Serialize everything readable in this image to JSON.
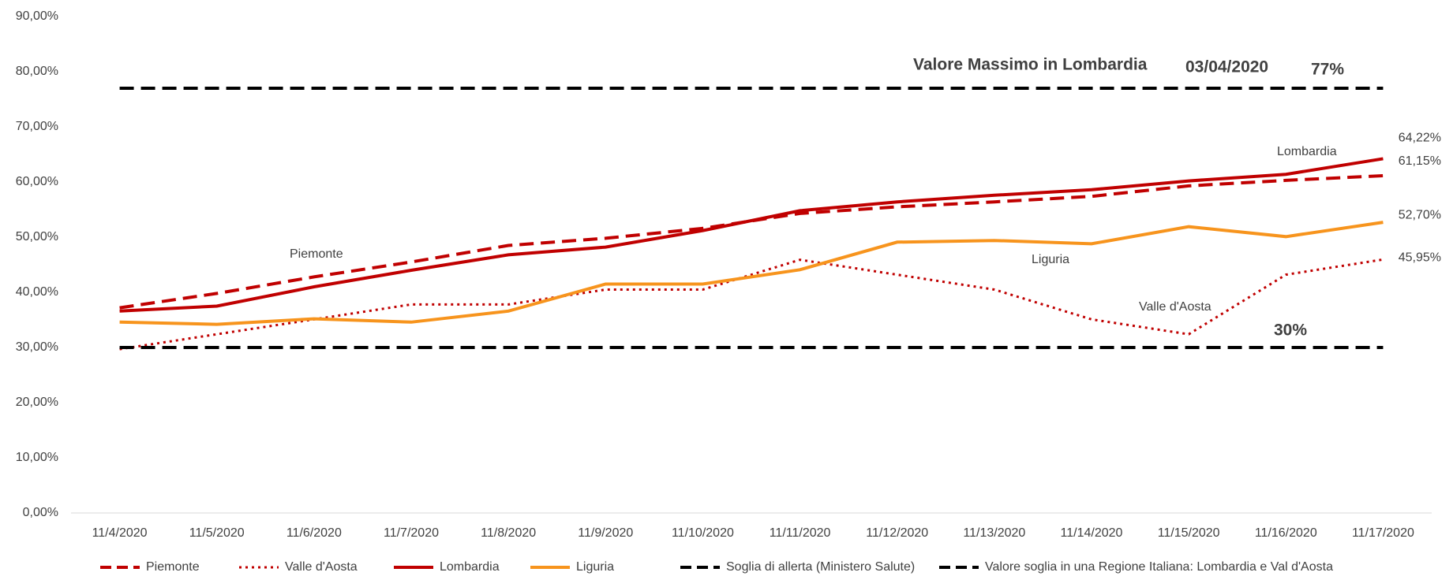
{
  "chart_data": {
    "type": "line",
    "categories": [
      "11/4/2020",
      "11/5/2020",
      "11/6/2020",
      "11/7/2020",
      "11/8/2020",
      "11/9/2020",
      "11/10/2020",
      "11/11/2020",
      "11/12/2020",
      "11/13/2020",
      "11/14/2020",
      "11/15/2020",
      "11/16/2020",
      "11/17/2020"
    ],
    "ylim": [
      0,
      90
    ],
    "yticks": [
      {
        "value": 0,
        "label": "0,00%"
      },
      {
        "value": 10,
        "label": "10,00%"
      },
      {
        "value": 20,
        "label": "20,00%"
      },
      {
        "value": 30,
        "label": "30,00%"
      },
      {
        "value": 40,
        "label": "40,00%"
      },
      {
        "value": 50,
        "label": "50,00%"
      },
      {
        "value": 60,
        "label": "60,00%"
      },
      {
        "value": 70,
        "label": "70,00%"
      },
      {
        "value": 80,
        "label": "80,00%"
      },
      {
        "value": 90,
        "label": "90,00%"
      }
    ],
    "grid": false,
    "legend": "bottom",
    "series": [
      {
        "name": "Piemonte",
        "color": "#c00000",
        "dash": "dashed",
        "values": [
          37.2,
          39.8,
          42.8,
          45.5,
          48.5,
          49.8,
          51.6,
          54.3,
          55.5,
          56.4,
          57.4,
          59.3,
          60.3,
          61.15
        ],
        "value_labels": [
          null,
          null,
          null,
          null,
          null,
          null,
          null,
          null,
          null,
          null,
          null,
          null,
          null,
          "61,15%"
        ]
      },
      {
        "name": "Valle d'Aosta",
        "color": "#c00000",
        "dash": "dotted",
        "values": [
          29.7,
          32.4,
          35.1,
          37.8,
          37.8,
          40.5,
          40.5,
          45.9,
          43.2,
          40.5,
          35.1,
          32.4,
          43.2,
          45.95
        ],
        "value_labels": [
          null,
          null,
          null,
          null,
          null,
          null,
          null,
          null,
          null,
          null,
          null,
          null,
          null,
          "45,95%"
        ]
      },
      {
        "name": "Lombardia",
        "color": "#c00000",
        "dash": "solid",
        "values": [
          36.6,
          37.5,
          41.0,
          44.0,
          46.8,
          48.2,
          51.2,
          54.8,
          56.4,
          57.6,
          58.6,
          60.2,
          61.4,
          64.22
        ],
        "value_labels": [
          null,
          null,
          null,
          null,
          null,
          null,
          null,
          null,
          null,
          null,
          null,
          null,
          null,
          "64,22%"
        ]
      },
      {
        "name": "Liguria",
        "color": "#f7941d",
        "dash": "solid",
        "values": [
          34.6,
          34.2,
          35.2,
          34.6,
          36.6,
          41.5,
          41.5,
          44.1,
          49.1,
          49.4,
          48.8,
          51.9,
          50.1,
          52.7
        ],
        "value_labels": [
          null,
          null,
          null,
          null,
          null,
          null,
          null,
          null,
          null,
          null,
          null,
          null,
          null,
          "52,70%"
        ]
      },
      {
        "name": "Soglia di allerta (Ministero Salute)",
        "color": "#000000",
        "dash": "dashed",
        "values": [
          30,
          30,
          30,
          30,
          30,
          30,
          30,
          30,
          30,
          30,
          30,
          30,
          30,
          30
        ]
      },
      {
        "name": "Valore soglia in una Regione Italiana: Lombardia e Val d'Aosta",
        "color": "#000000",
        "dash": "dashed",
        "values": [
          77,
          77,
          77,
          77,
          77,
          77,
          77,
          77,
          77,
          77,
          77,
          77,
          77,
          77
        ]
      }
    ],
    "annotations": [
      "Valore Massimo in Lombardia",
      "03/04/2020",
      "77%",
      "30%",
      "Piemonte",
      "Lombardia",
      "Liguria",
      "Valle d'Aosta"
    ]
  }
}
